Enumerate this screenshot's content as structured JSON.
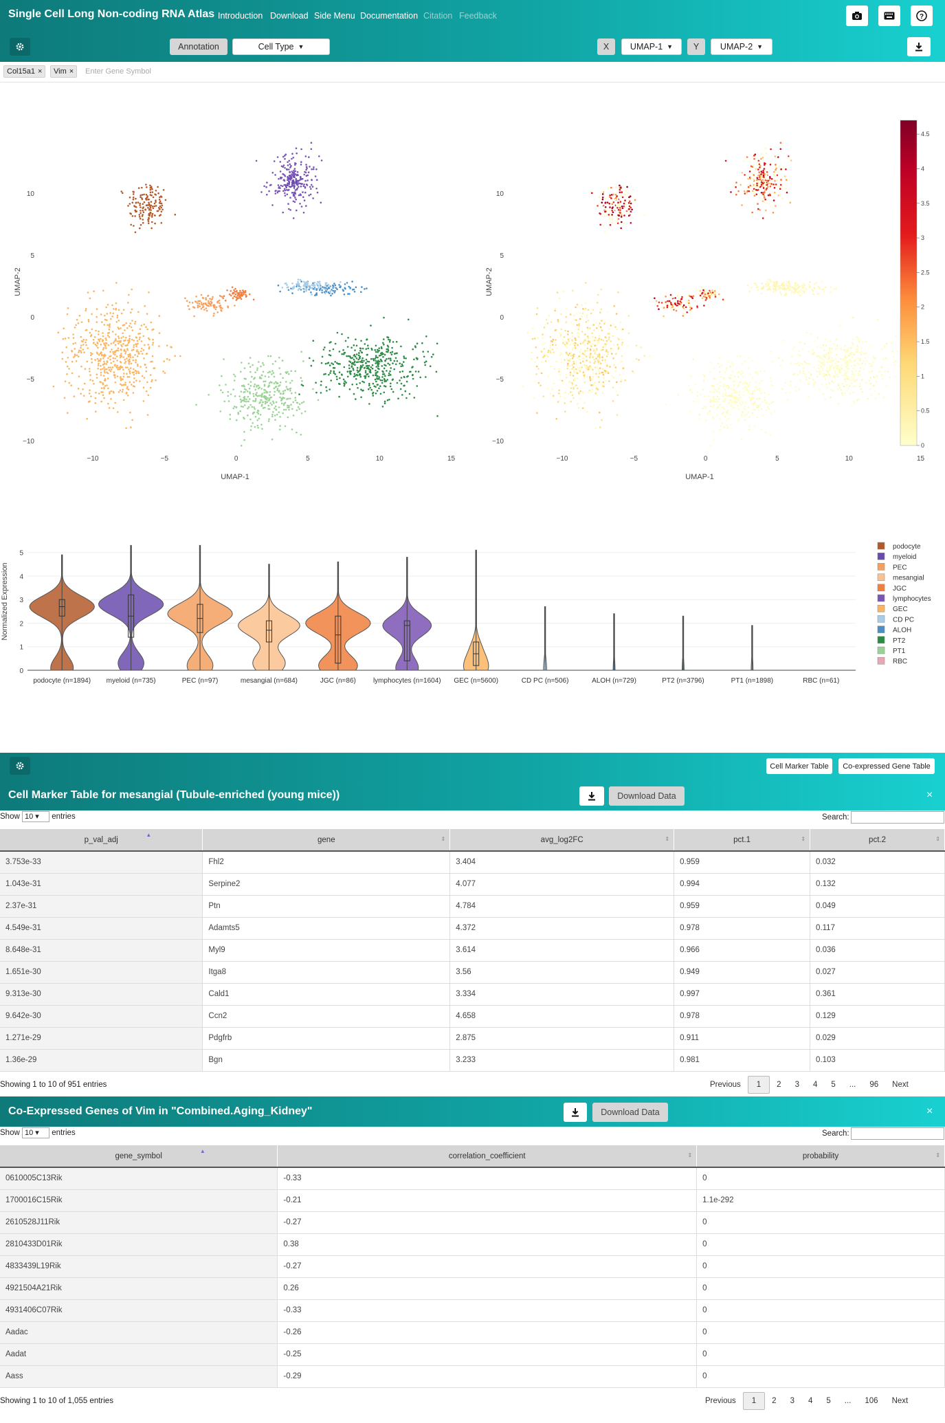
{
  "navbar": {
    "brand": "Single Cell Long Non-coding RNA Atlas",
    "items": [
      {
        "label": "Introduction",
        "enabled": true
      },
      {
        "label": "Download",
        "enabled": true
      },
      {
        "label": "Side Menu",
        "enabled": true
      },
      {
        "label": "Documentation",
        "enabled": true
      },
      {
        "label": "Citation",
        "enabled": false
      },
      {
        "label": "Feedback",
        "enabled": false
      }
    ],
    "icons": [
      "camera-icon",
      "keyboard-icon",
      "help-icon"
    ]
  },
  "toolbar": {
    "settings_icon": "gear-icon",
    "annotation_label": "Annotation",
    "cell_type_value": "Cell Type",
    "x_label": "X",
    "x_value": "UMAP-1",
    "y_label": "Y",
    "y_value": "UMAP-2",
    "download_icon": "download-icon"
  },
  "genes": {
    "selected": [
      "Col15a1",
      "Vim"
    ],
    "placeholder": "Enter Gene Symbol"
  },
  "colors": {
    "podocyte": "#b35a2c",
    "myeloid": "#6a4cae",
    "PEC": "#f5a060",
    "mesangial": "#fbc18e",
    "JGC": "#f08040",
    "lymphocytes": "#7b55b5",
    "GEC": "#fbb561",
    "CD PC": "#a9cde6",
    "ALOH": "#4a90c8",
    "PT2": "#2e8b45",
    "PT1": "#9bd396",
    "RBC": "#e9a6b6"
  },
  "chart_data": [
    {
      "type": "scatter",
      "title": "",
      "xlabel": "UMAP-1",
      "ylabel": "UMAP-2",
      "xlim": [
        -13.5,
        15.5
      ],
      "ylim": [
        -10.5,
        14.5
      ],
      "xticks": [
        -10,
        -5,
        0,
        5,
        10,
        15
      ],
      "yticks": [
        -10,
        -5,
        0,
        5,
        10
      ],
      "coloring": "cell type",
      "series": [
        {
          "name": "podocyte",
          "center": [
            -6.2,
            9.0
          ],
          "spread": [
            1.4,
            2.0
          ]
        },
        {
          "name": "lymphocytes",
          "center": [
            4.0,
            11.0
          ],
          "spread": [
            1.8,
            2.2
          ]
        },
        {
          "name": "myeloid",
          "center": [
            4.0,
            11.0
          ],
          "spread": [
            0.6,
            0.6
          ]
        },
        {
          "name": "PEC",
          "center": [
            -2.0,
            1.0
          ],
          "spread": [
            1.3,
            0.9
          ]
        },
        {
          "name": "JGC",
          "center": [
            0.2,
            1.8
          ],
          "spread": [
            0.9,
            0.5
          ]
        },
        {
          "name": "ALOH",
          "center": [
            6.5,
            2.3
          ],
          "spread": [
            2.8,
            0.5
          ]
        },
        {
          "name": "CD PC",
          "center": [
            5.0,
            2.5
          ],
          "spread": [
            2.2,
            0.5
          ]
        },
        {
          "name": "GEC",
          "center": [
            -8.5,
            -3.0
          ],
          "spread": [
            3.2,
            4.0
          ]
        },
        {
          "name": "PT2",
          "center": [
            9.5,
            -4.0
          ],
          "spread": [
            3.8,
            2.6
          ]
        },
        {
          "name": "PT1",
          "center": [
            2.0,
            -6.5
          ],
          "spread": [
            2.8,
            2.6
          ]
        }
      ]
    },
    {
      "type": "scatter",
      "title": "",
      "xlabel": "UMAP-1",
      "ylabel": "UMAP-2",
      "xlim": [
        -13.5,
        15.5
      ],
      "ylim": [
        -10.5,
        14.5
      ],
      "xticks": [
        -10,
        -5,
        0,
        5,
        10,
        15
      ],
      "yticks": [
        -10,
        -5,
        0,
        5,
        10
      ],
      "coloring": "expression",
      "colorbar": {
        "min": 0,
        "max": 4.7,
        "ticks": [
          0,
          0.5,
          1,
          1.5,
          2,
          2.5,
          3,
          3.5,
          4,
          4.5
        ]
      }
    },
    {
      "type": "violin",
      "ylabel": "Normalized Expression",
      "ylim": [
        0,
        5.4
      ],
      "yticks": [
        0,
        1,
        2,
        3,
        4,
        5
      ],
      "categories": [
        "podocyte (n=1894)",
        "myeloid (n=735)",
        "PEC (n=97)",
        "mesangial (n=684)",
        "JGC (n=86)",
        "lymphocytes (n=1604)",
        "GEC (n=5600)",
        "CD PC (n=506)",
        "ALOH (n=729)",
        "PT2 (n=3796)",
        "PT1 (n=1898)",
        "RBC (n=61)"
      ],
      "legend": [
        "podocyte",
        "myeloid",
        "PEC",
        "mesangial",
        "JGC",
        "lymphocytes",
        "GEC",
        "CD PC",
        "ALOH",
        "PT2",
        "PT1",
        "RBC"
      ],
      "series": [
        {
          "name": "podocyte",
          "max": 4.9,
          "median": 2.7,
          "q1": 2.3,
          "q3": 3.0,
          "modes": [
            [
              2.7,
              1.0
            ],
            [
              0.1,
              0.35
            ]
          ]
        },
        {
          "name": "myeloid",
          "max": 5.3,
          "median": 2.3,
          "q1": 1.4,
          "q3": 3.2,
          "modes": [
            [
              2.8,
              1.0
            ],
            [
              0.3,
              0.4
            ]
          ]
        },
        {
          "name": "PEC",
          "max": 5.3,
          "median": 2.2,
          "q1": 1.6,
          "q3": 2.8,
          "modes": [
            [
              2.4,
              1.0
            ],
            [
              0.2,
              0.4
            ]
          ]
        },
        {
          "name": "mesangial",
          "max": 4.5,
          "median": 1.7,
          "q1": 1.2,
          "q3": 2.1,
          "modes": [
            [
              1.9,
              0.95
            ],
            [
              0.3,
              0.5
            ]
          ]
        },
        {
          "name": "JGC",
          "max": 4.6,
          "median": 1.5,
          "q1": 0.3,
          "q3": 2.3,
          "modes": [
            [
              2.0,
              1.0
            ],
            [
              0.2,
              0.6
            ]
          ]
        },
        {
          "name": "lymphocytes",
          "max": 4.8,
          "median": 1.9,
          "q1": 0.4,
          "q3": 2.1,
          "modes": [
            [
              1.9,
              0.75
            ],
            [
              0.1,
              0.35
            ]
          ]
        },
        {
          "name": "GEC",
          "max": 5.1,
          "median": 0.7,
          "q1": 0.2,
          "q3": 1.2,
          "modes": [
            [
              0.1,
              0.35
            ],
            [
              0.9,
              0.15
            ]
          ]
        },
        {
          "name": "CD PC",
          "max": 2.7,
          "median": 0.0,
          "q1": 0.0,
          "q3": 0.0,
          "modes": [
            [
              0.0,
              0.05
            ]
          ]
        },
        {
          "name": "ALOH",
          "max": 2.4,
          "median": 0.0,
          "q1": 0.0,
          "q3": 0.0,
          "modes": [
            [
              0.0,
              0.03
            ]
          ]
        },
        {
          "name": "PT2",
          "max": 2.3,
          "median": 0.0,
          "q1": 0.0,
          "q3": 0.0,
          "modes": [
            [
              0.0,
              0.03
            ]
          ]
        },
        {
          "name": "PT1",
          "max": 1.9,
          "median": 0.0,
          "q1": 0.0,
          "q3": 0.0,
          "modes": [
            [
              0.0,
              0.03
            ]
          ]
        },
        {
          "name": "RBC",
          "max": 0.0,
          "median": 0.0,
          "q1": 0.0,
          "q3": 0.0,
          "modes": []
        }
      ]
    }
  ],
  "panel2_toolbar": {
    "settings_icon": "gear-icon",
    "btn_cell_marker": "Cell Marker Table",
    "btn_coexpressed": "Co-expressed Gene Table"
  },
  "marker_table": {
    "title": "Cell Marker Table for mesangial (Tubule-enriched (young mice))",
    "download_label": "Download Data",
    "show_prefix": "Show",
    "show_value": "10",
    "show_suffix": "entries",
    "search_label": "Search:",
    "columns": [
      "p_val_adj",
      "gene",
      "avg_log2FC",
      "pct.1",
      "pct.2"
    ],
    "rows": [
      [
        "3.753e-33",
        "Fhl2",
        "3.404",
        "0.959",
        "0.032"
      ],
      [
        "1.043e-31",
        "Serpine2",
        "4.077",
        "0.994",
        "0.132"
      ],
      [
        "2.37e-31",
        "Ptn",
        "4.784",
        "0.959",
        "0.049"
      ],
      [
        "4.549e-31",
        "Adamts5",
        "4.372",
        "0.978",
        "0.117"
      ],
      [
        "8.648e-31",
        "Myl9",
        "3.614",
        "0.966",
        "0.036"
      ],
      [
        "1.651e-30",
        "Itga8",
        "3.56",
        "0.949",
        "0.027"
      ],
      [
        "9.313e-30",
        "Cald1",
        "3.334",
        "0.997",
        "0.361"
      ],
      [
        "9.642e-30",
        "Ccn2",
        "4.658",
        "0.978",
        "0.129"
      ],
      [
        "1.271e-29",
        "Pdgfrb",
        "2.875",
        "0.911",
        "0.029"
      ],
      [
        "1.36e-29",
        "Bgn",
        "3.233",
        "0.981",
        "0.103"
      ]
    ],
    "info": "Showing 1 to 10 of 951 entries",
    "pager": {
      "previous": "Previous",
      "pages": [
        "1",
        "2",
        "3",
        "4",
        "5",
        "...",
        "96"
      ],
      "next": "Next",
      "current": "1"
    }
  },
  "coexp_table": {
    "title": "Co-Expressed Genes of Vim in \"Combined.Aging_Kidney\"",
    "download_label": "Download Data",
    "show_prefix": "Show",
    "show_value": "10",
    "show_suffix": "entries",
    "search_label": "Search:",
    "columns": [
      "gene_symbol",
      "correlation_coefficient",
      "probability"
    ],
    "rows": [
      [
        "0610005C13Rik",
        "-0.33",
        "0"
      ],
      [
        "1700016C15Rik",
        "-0.21",
        "1.1e-292"
      ],
      [
        "2610528J11Rik",
        "-0.27",
        "0"
      ],
      [
        "2810433D01Rik",
        "0.38",
        "0"
      ],
      [
        "4833439L19Rik",
        "-0.27",
        "0"
      ],
      [
        "4921504A21Rik",
        "0.26",
        "0"
      ],
      [
        "4931406C07Rik",
        "-0.33",
        "0"
      ],
      [
        "Aadac",
        "-0.26",
        "0"
      ],
      [
        "Aadat",
        "-0.25",
        "0"
      ],
      [
        "Aass",
        "-0.29",
        "0"
      ]
    ],
    "info": "Showing 1 to 10 of 1,055 entries",
    "pager": {
      "previous": "Previous",
      "pages": [
        "1",
        "2",
        "3",
        "4",
        "5",
        "...",
        "106"
      ],
      "next": "Next",
      "current": "1"
    }
  }
}
